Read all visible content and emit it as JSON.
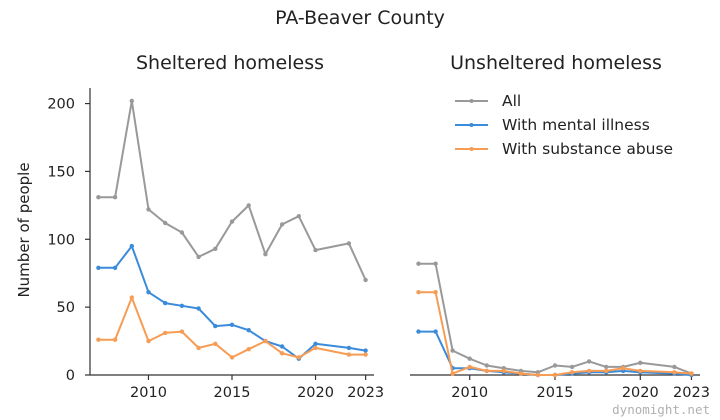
{
  "figure": {
    "title": "PA-Beaver County",
    "ylabel": "Number of people",
    "watermark": "dynomight.net"
  },
  "legend": {
    "entries": [
      {
        "label": "All",
        "color": "#999999"
      },
      {
        "label": "With mental illness",
        "color": "#3b8bdb"
      },
      {
        "label": "With substance abuse",
        "color": "#f79c54"
      }
    ],
    "placement": "upper-right of right panel"
  },
  "chart_data": [
    {
      "type": "line",
      "title": "Sheltered homeless",
      "xlabel": "",
      "ylabel": "Number of people",
      "xlim": [
        2006.5,
        2023.5
      ],
      "ylim": [
        0,
        210
      ],
      "xticks": [
        2010,
        2015,
        2020,
        2023
      ],
      "yticks": [
        0,
        50,
        100,
        150,
        200
      ],
      "grid": false,
      "series": [
        {
          "name": "All",
          "color": "#999999",
          "x": [
            2007,
            2008,
            2009,
            2010,
            2011,
            2012,
            2013,
            2014,
            2015,
            2016,
            2017,
            2018,
            2019,
            2020,
            2022,
            2023
          ],
          "y": [
            131,
            131,
            202,
            122,
            112,
            105,
            87,
            93,
            113,
            125,
            89,
            111,
            117,
            92,
            97,
            70
          ]
        },
        {
          "name": "With mental illness",
          "color": "#3b8bdb",
          "x": [
            2007,
            2008,
            2009,
            2010,
            2011,
            2012,
            2013,
            2014,
            2015,
            2016,
            2017,
            2018,
            2019,
            2020,
            2022,
            2023
          ],
          "y": [
            79,
            79,
            95,
            61,
            53,
            51,
            49,
            36,
            37,
            33,
            25,
            21,
            12,
            23,
            20,
            18
          ]
        },
        {
          "name": "With substance abuse",
          "color": "#f79c54",
          "x": [
            2007,
            2008,
            2009,
            2010,
            2011,
            2012,
            2013,
            2014,
            2015,
            2016,
            2017,
            2018,
            2019,
            2020,
            2022,
            2023
          ],
          "y": [
            26,
            26,
            57,
            25,
            31,
            32,
            20,
            23,
            13,
            19,
            25,
            16,
            13,
            20,
            15,
            15
          ]
        }
      ]
    },
    {
      "type": "line",
      "title": "Unsheltered homeless",
      "xlabel": "",
      "ylabel": "",
      "xlim": [
        2006.5,
        2023.5
      ],
      "ylim": [
        0,
        210
      ],
      "xticks": [
        2010,
        2015,
        2020,
        2023
      ],
      "yticks": [],
      "grid": false,
      "series": [
        {
          "name": "All",
          "color": "#999999",
          "x": [
            2007,
            2008,
            2009,
            2010,
            2011,
            2012,
            2013,
            2014,
            2015,
            2016,
            2017,
            2018,
            2019,
            2020,
            2022,
            2023
          ],
          "y": [
            82,
            82,
            18,
            12,
            7,
            5,
            3,
            2,
            7,
            6,
            10,
            6,
            6,
            9,
            6,
            1
          ]
        },
        {
          "name": "With mental illness",
          "color": "#3b8bdb",
          "x": [
            2007,
            2008,
            2009,
            2010,
            2011,
            2012,
            2013,
            2014,
            2015,
            2016,
            2017,
            2018,
            2019,
            2020,
            2022,
            2023
          ],
          "y": [
            32,
            32,
            5,
            5,
            3,
            2,
            1,
            0,
            0,
            1,
            2,
            2,
            3,
            2,
            1,
            0
          ]
        },
        {
          "name": "With substance abuse",
          "color": "#f79c54",
          "x": [
            2007,
            2008,
            2009,
            2010,
            2011,
            2012,
            2013,
            2014,
            2015,
            2016,
            2017,
            2018,
            2019,
            2020,
            2022,
            2023
          ],
          "y": [
            61,
            61,
            1,
            6,
            3,
            3,
            1,
            0,
            0,
            2,
            3,
            3,
            5,
            3,
            2,
            1
          ]
        }
      ]
    }
  ]
}
